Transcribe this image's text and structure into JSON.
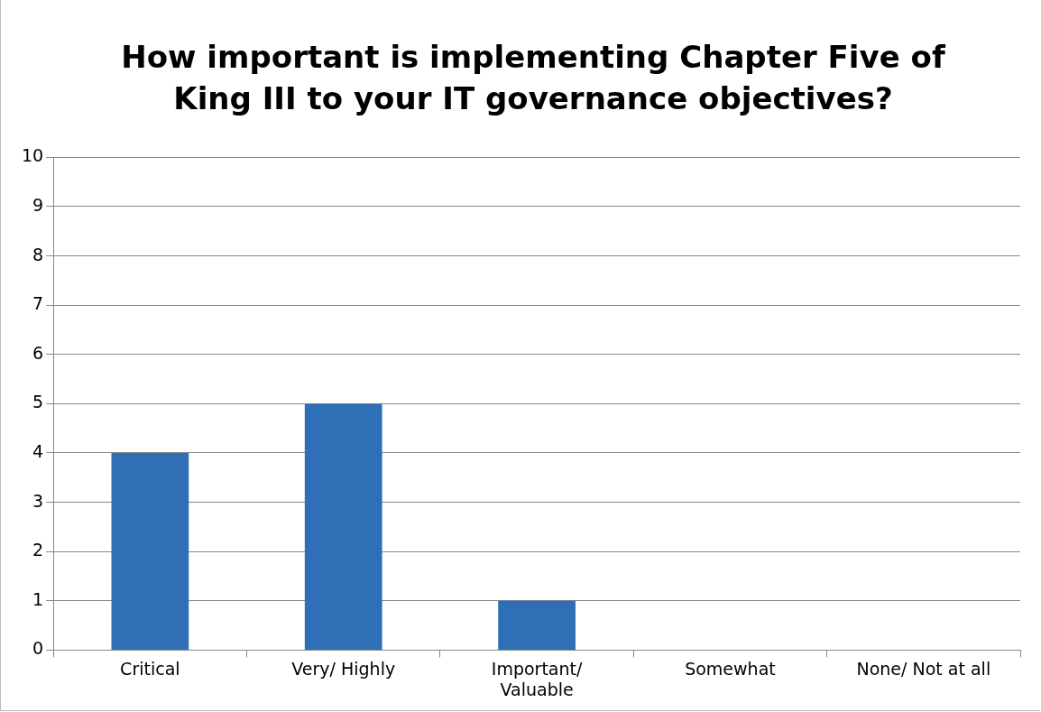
{
  "chart_data": {
    "type": "bar",
    "title": "How important is implementing Chapter Five of King III to your IT governance objectives?",
    "categories": [
      "Critical",
      "Very/ Highly",
      "Important/ Valuable",
      "Somewhat",
      "None/ Not at all"
    ],
    "values": [
      4,
      5,
      1,
      0,
      0
    ],
    "color": "#2f6fb6",
    "ylim": [
      0,
      10
    ],
    "yticks": [
      0,
      1,
      2,
      3,
      4,
      5,
      6,
      7,
      8,
      9,
      10
    ],
    "grid": "y",
    "legend": false
  }
}
